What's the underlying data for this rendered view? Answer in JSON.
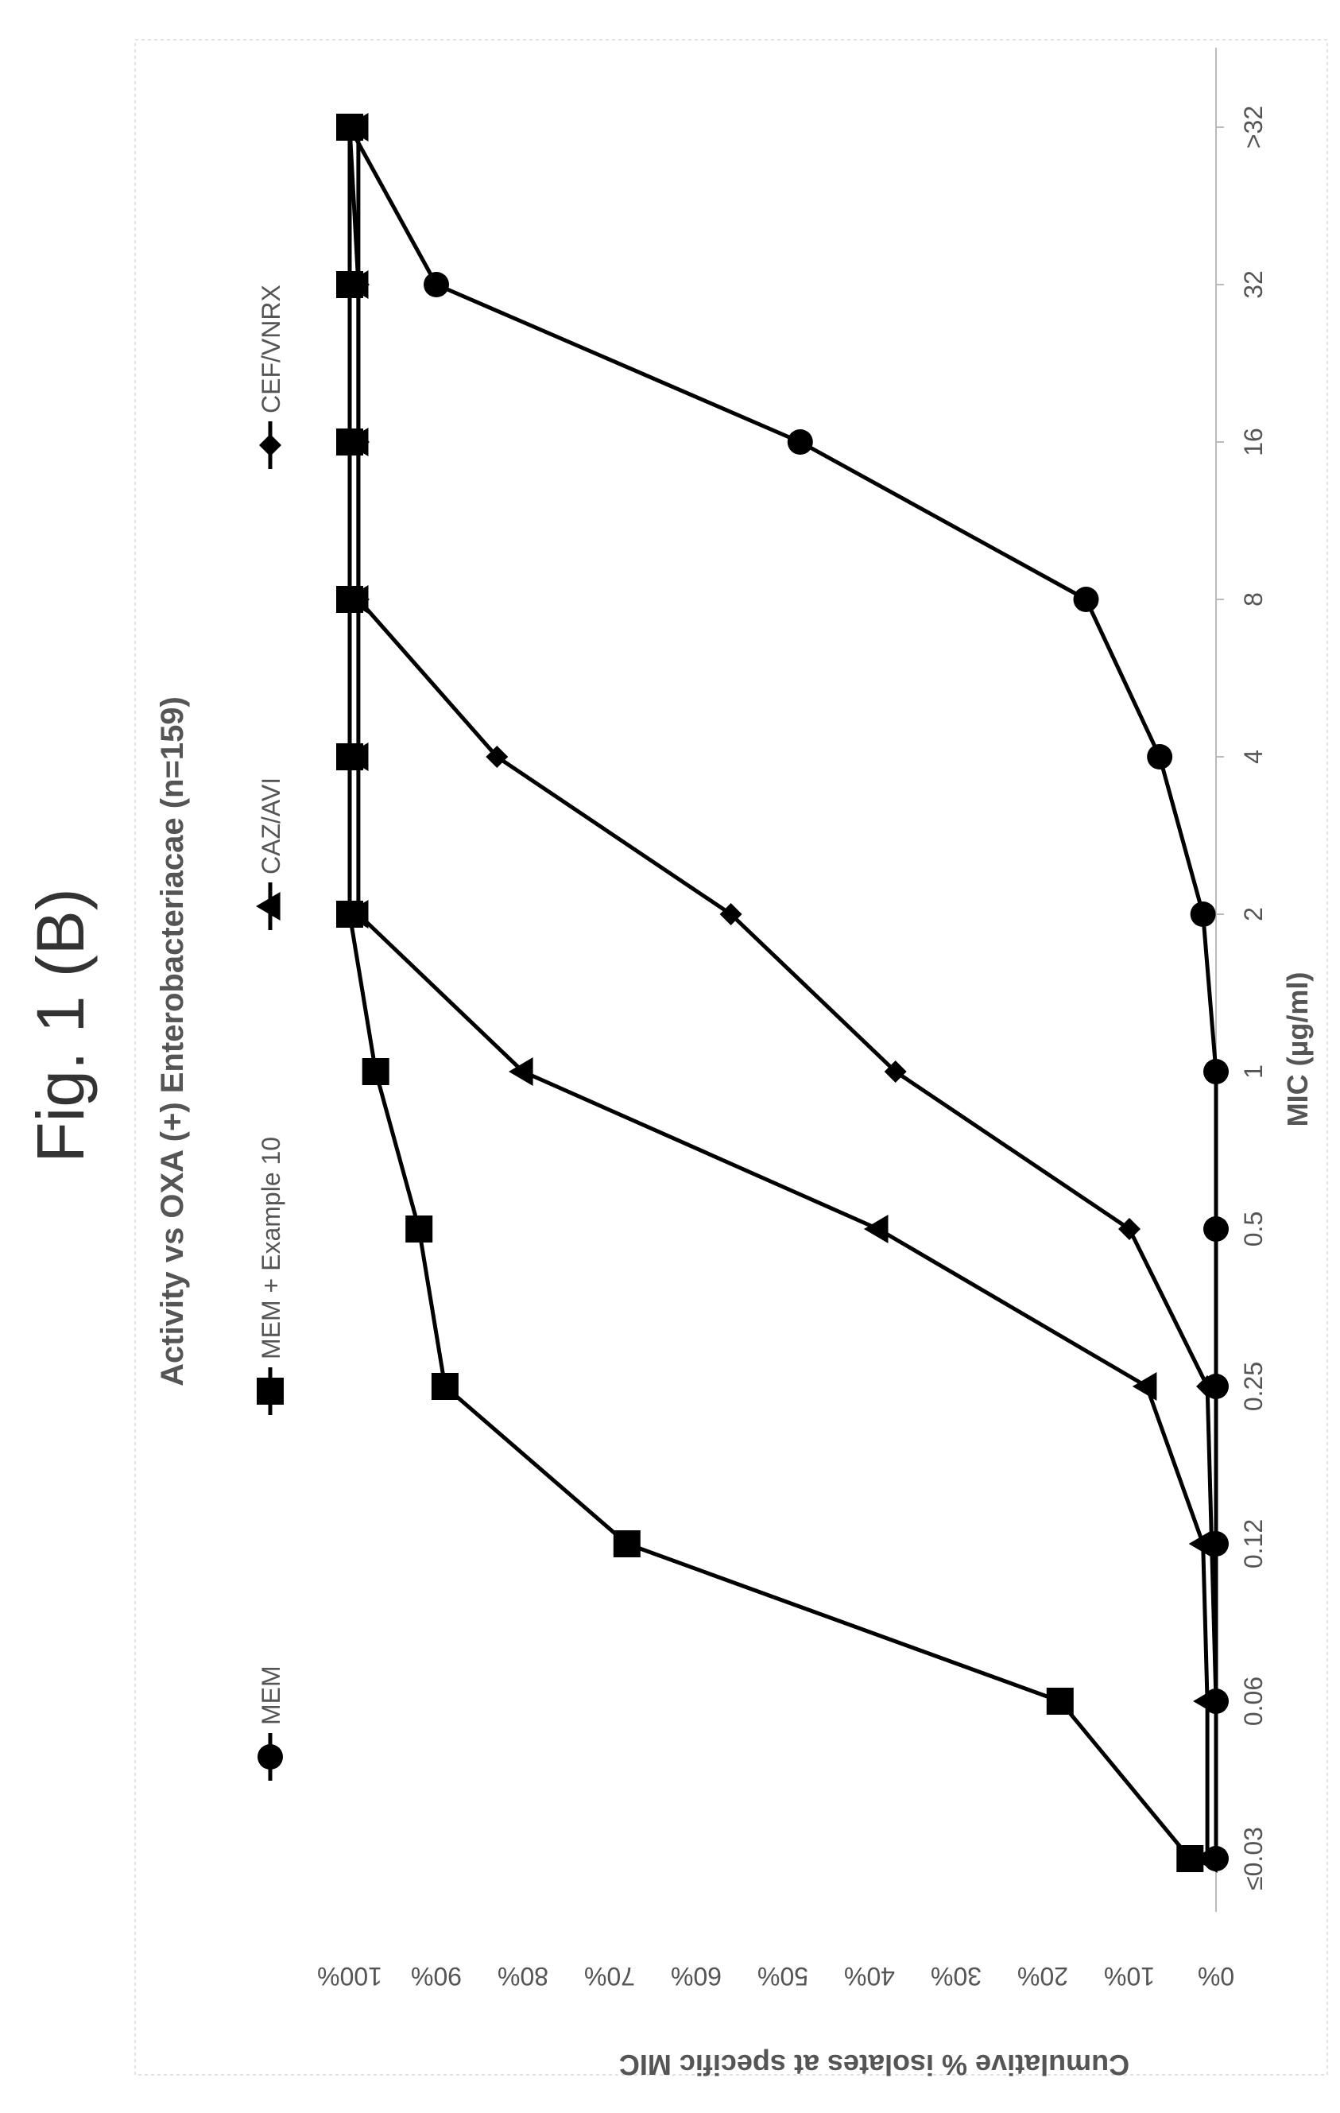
{
  "figure_label": "Fig. 1 (B)",
  "chart_data": {
    "type": "line",
    "title": "Activity vs OXA (+) Enterobacteriacae (n=159)",
    "xlabel": "MIC (µg/ml)",
    "ylabel": "Cumulative % isolates at specific MIC",
    "categories": [
      "≤0.03",
      "0.06",
      "0.12",
      "0.25",
      "0.5",
      "1",
      "2",
      "4",
      "8",
      "16",
      "32",
      ">32"
    ],
    "y_ticks": [
      "0%",
      "10%",
      "20%",
      "30%",
      "40%",
      "50%",
      "60%",
      "70%",
      "80%",
      "90%",
      "100%"
    ],
    "ylim": [
      0,
      100
    ],
    "grid": false,
    "legend_position": "top",
    "orientation": "rotated 90° counter-clockwise on page",
    "series": [
      {
        "name": "MEM",
        "marker": "circle",
        "values": [
          0,
          0,
          0,
          0,
          0,
          0,
          1.5,
          6.5,
          15,
          48,
          90,
          100
        ]
      },
      {
        "name": "MEM + Example 10",
        "marker": "square",
        "values": [
          3,
          18,
          68,
          89,
          92,
          97,
          100,
          100,
          100,
          100,
          100,
          100
        ]
      },
      {
        "name": "CAZ/AVI",
        "marker": "triangle",
        "values": [
          1,
          1,
          1.5,
          8,
          39,
          80,
          99,
          99,
          99,
          99,
          99,
          99
        ]
      },
      {
        "name": "CEF/VNRX",
        "marker": "diamond",
        "values": [
          0,
          0,
          0.5,
          1,
          10,
          37,
          56,
          83,
          99,
          99,
          99,
          100
        ]
      }
    ]
  }
}
